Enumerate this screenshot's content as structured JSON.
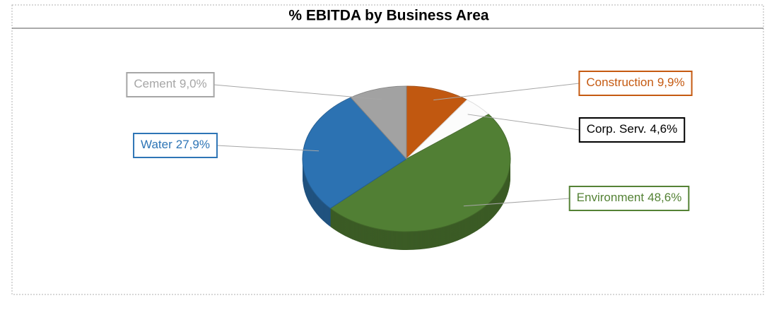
{
  "chart_data": {
    "type": "pie",
    "title": "% EBITDA by Business Area",
    "categories": [
      "Construction",
      "Corp. Serv.",
      "Environment",
      "Water",
      "Cement"
    ],
    "values": [
      9.9,
      4.6,
      48.6,
      27.9,
      9.0
    ],
    "value_labels": [
      "9,9%",
      "4,6%",
      "48,6%",
      "27,9%",
      "9,0%"
    ],
    "colors": [
      "#c55a11",
      "#ffffff",
      "#548235",
      "#2e75b6",
      "#a6a6a6"
    ]
  }
}
